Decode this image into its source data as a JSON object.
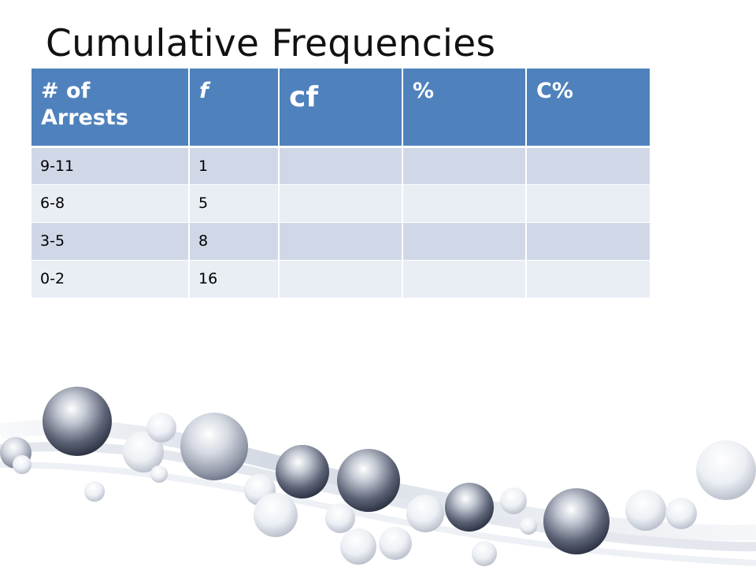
{
  "slide": {
    "title": "Cumulative Frequencies"
  },
  "table": {
    "headers": [
      "# of Arrests",
      "f",
      "cf",
      "%",
      "C%"
    ],
    "rows": [
      [
        "9-11",
        "1",
        "",
        "",
        ""
      ],
      [
        "6-8",
        "5",
        "",
        "",
        ""
      ],
      [
        "3-5",
        "8",
        "",
        "",
        ""
      ],
      [
        "0-2",
        "16",
        "",
        "",
        ""
      ]
    ]
  },
  "colors": {
    "header_fill": "#4f81bd",
    "row_band_1": "#d0d8e8",
    "row_band_2": "#e9edf4",
    "sphere_dark": "#3a4152",
    "sphere_light": "#ffffff"
  },
  "decoration": "glossy-spheres-wave"
}
